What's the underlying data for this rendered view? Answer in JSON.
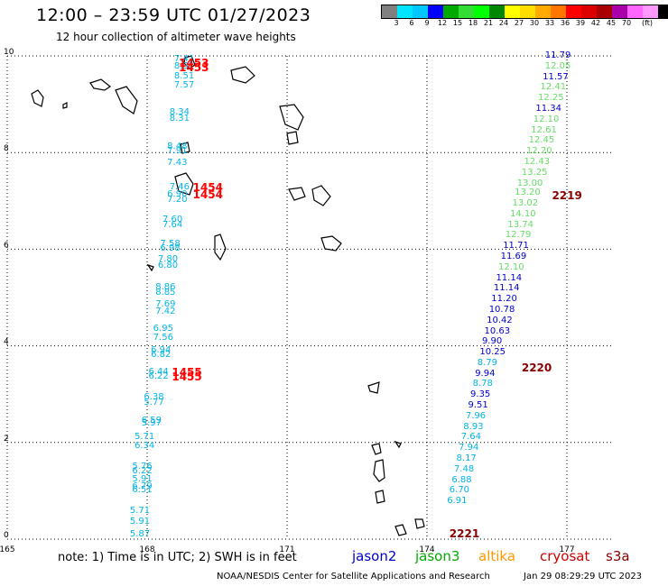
{
  "header": {
    "title": "12:00 – 23:59 UTC 01/27/2023",
    "subtitle": "12 hour collection of altimeter wave heights"
  },
  "colorbar": {
    "colors": [
      "#808080",
      "#00e5ff",
      "#00c8ff",
      "#0000ff",
      "#00aa00",
      "#33dd33",
      "#00ff00",
      "#008800",
      "#ffff00",
      "#ffdd00",
      "#ffaa00",
      "#ff7700",
      "#ff0000",
      "#dd0000",
      "#aa0000",
      "#aa00aa",
      "#ff66ff",
      "#ff99ff",
      "#000000"
    ],
    "labels": [
      "3",
      "6",
      "9",
      "12",
      "15",
      "18",
      "21",
      "24",
      "27",
      "30",
      "33",
      "36",
      "39",
      "42",
      "45",
      "70"
    ],
    "unit": "(ft)"
  },
  "axes": {
    "x_ticks": [
      "165",
      "168",
      "171",
      "174",
      "177"
    ],
    "y_ticks": [
      "0",
      "2",
      "4",
      "6",
      "8",
      "10"
    ]
  },
  "satellites": [
    {
      "name": "jason2",
      "color": "#0000cc"
    },
    {
      "name": "jason3",
      "color": "#00aa00"
    },
    {
      "name": "altika",
      "color": "#ff9900"
    },
    {
      "name": "cryosat",
      "color": "#cc0000"
    },
    {
      "name": "s3a",
      "color": "#880000"
    }
  ],
  "note": "note: 1) Time is in UTC; 2) SWH is in feet",
  "credit": "NOAA/NESDIS Center for Satellite Applications and Research",
  "generated": "Jan 29 08:29:29 UTC 2023",
  "pass_times": [
    {
      "text": "1453",
      "lon": 168.95,
      "lat": 9.85,
      "color": "#ff0000"
    },
    {
      "text": "1453",
      "lon": 168.95,
      "lat": 9.75,
      "color": "#ff0000"
    },
    {
      "text": "1454",
      "lon": 169.25,
      "lat": 7.28,
      "color": "#ff0000"
    },
    {
      "text": "1454",
      "lon": 169.25,
      "lat": 7.12,
      "color": "#ff0000"
    },
    {
      "text": "1455",
      "lon": 168.8,
      "lat": 3.45,
      "color": "#ff0000"
    },
    {
      "text": "1455",
      "lon": 168.8,
      "lat": 3.36,
      "color": "#ff0000"
    },
    {
      "text": "2219",
      "lon": 176.95,
      "lat": 7.1,
      "color": "#880000"
    },
    {
      "text": "2220",
      "lon": 176.3,
      "lat": 3.55,
      "color": "#880000"
    },
    {
      "text": "2221",
      "lon": 174.75,
      "lat": 0.12,
      "color": "#880000"
    }
  ],
  "wave_heights": [
    {
      "v": "7.41",
      "lon": 168.85,
      "lat": 9.92,
      "c": "#00b4e6"
    },
    {
      "v": "8.31",
      "lon": 168.85,
      "lat": 9.78,
      "c": "#00b4e6"
    },
    {
      "v": "8.51",
      "lon": 168.85,
      "lat": 9.57,
      "c": "#00b4e6"
    },
    {
      "v": "7.57",
      "lon": 168.85,
      "lat": 9.38,
      "c": "#00b4e6"
    },
    {
      "v": "8.34",
      "lon": 168.75,
      "lat": 8.82,
      "c": "#00b4e6"
    },
    {
      "v": "8.31",
      "lon": 168.75,
      "lat": 8.7,
      "c": "#00b4e6"
    },
    {
      "v": "8.48",
      "lon": 168.7,
      "lat": 8.12,
      "c": "#00b4e6"
    },
    {
      "v": "7.91",
      "lon": 168.7,
      "lat": 8.02,
      "c": "#00b4e6"
    },
    {
      "v": "7.43",
      "lon": 168.7,
      "lat": 7.78,
      "c": "#00b4e6"
    },
    {
      "v": "7.46",
      "lon": 168.75,
      "lat": 7.28,
      "c": "#00b4e6"
    },
    {
      "v": "6.90",
      "lon": 168.7,
      "lat": 7.12,
      "c": "#00b4e6"
    },
    {
      "v": "7.20",
      "lon": 168.7,
      "lat": 7.02,
      "c": "#00b4e6"
    },
    {
      "v": "7.60",
      "lon": 168.6,
      "lat": 6.6,
      "c": "#00b4e6"
    },
    {
      "v": "7.64",
      "lon": 168.6,
      "lat": 6.5,
      "c": "#00b4e6"
    },
    {
      "v": "7.58",
      "lon": 168.55,
      "lat": 6.1,
      "c": "#00b4e6"
    },
    {
      "v": "6.98",
      "lon": 168.55,
      "lat": 6.0,
      "c": "#00b4e6"
    },
    {
      "v": "7.80",
      "lon": 168.5,
      "lat": 5.78,
      "c": "#00b4e6"
    },
    {
      "v": "6.80",
      "lon": 168.5,
      "lat": 5.66,
      "c": "#00b4e6"
    },
    {
      "v": "8.86",
      "lon": 168.45,
      "lat": 5.2,
      "c": "#00b4e6"
    },
    {
      "v": "8.85",
      "lon": 168.45,
      "lat": 5.1,
      "c": "#00b4e6"
    },
    {
      "v": "7.69",
      "lon": 168.45,
      "lat": 4.86,
      "c": "#00b4e6"
    },
    {
      "v": "7.42",
      "lon": 168.45,
      "lat": 4.7,
      "c": "#00b4e6"
    },
    {
      "v": "6.95",
      "lon": 168.4,
      "lat": 4.34,
      "c": "#00b4e6"
    },
    {
      "v": "7.56",
      "lon": 168.4,
      "lat": 4.16,
      "c": "#00b4e6"
    },
    {
      "v": "6.94",
      "lon": 168.35,
      "lat": 3.9,
      "c": "#00b4e6"
    },
    {
      "v": "6.82",
      "lon": 168.35,
      "lat": 3.8,
      "c": "#00b4e6"
    },
    {
      "v": "6.44",
      "lon": 168.3,
      "lat": 3.45,
      "c": "#00b4e6"
    },
    {
      "v": "6.22",
      "lon": 168.3,
      "lat": 3.36,
      "c": "#00b4e6"
    },
    {
      "v": "6.38",
      "lon": 168.2,
      "lat": 2.92,
      "c": "#00b4e6"
    },
    {
      "v": "5.77",
      "lon": 168.2,
      "lat": 2.82,
      "c": "#00b4e6"
    },
    {
      "v": "6.59",
      "lon": 168.15,
      "lat": 2.45,
      "c": "#00b4e6"
    },
    {
      "v": "5.97",
      "lon": 168.15,
      "lat": 2.38,
      "c": "#00b4e6"
    },
    {
      "v": "5.71",
      "lon": 168.0,
      "lat": 2.1,
      "c": "#00b4e6"
    },
    {
      "v": "6.34",
      "lon": 168.0,
      "lat": 1.92,
      "c": "#00b4e6"
    },
    {
      "v": "5.76",
      "lon": 167.95,
      "lat": 1.5,
      "c": "#00b4e6"
    },
    {
      "v": "6.22",
      "lon": 167.95,
      "lat": 1.4,
      "c": "#00b4e6"
    },
    {
      "v": "5.91",
      "lon": 167.95,
      "lat": 1.24,
      "c": "#00b4e6"
    },
    {
      "v": "6.79",
      "lon": 167.95,
      "lat": 1.08,
      "c": "#00b4e6"
    },
    {
      "v": "6.51",
      "lon": 167.95,
      "lat": 1.0,
      "c": "#00b4e6"
    },
    {
      "v": "5.71",
      "lon": 167.9,
      "lat": 0.58,
      "c": "#00b4e6"
    },
    {
      "v": "5.91",
      "lon": 167.9,
      "lat": 0.36,
      "c": "#00b4e6"
    },
    {
      "v": "5.87",
      "lon": 167.9,
      "lat": 0.1,
      "c": "#00b4e6"
    },
    {
      "v": "11.79",
      "lon": 176.8,
      "lat": 10.0,
      "c": "#0000cc"
    },
    {
      "v": "12.05",
      "lon": 176.8,
      "lat": 9.78,
      "c": "#66dd66"
    },
    {
      "v": "11.57",
      "lon": 176.75,
      "lat": 9.56,
      "c": "#0000cc"
    },
    {
      "v": "12.41",
      "lon": 176.7,
      "lat": 9.34,
      "c": "#66dd66"
    },
    {
      "v": "12.25",
      "lon": 176.65,
      "lat": 9.12,
      "c": "#66dd66"
    },
    {
      "v": "11.34",
      "lon": 176.6,
      "lat": 8.9,
      "c": "#0000cc"
    },
    {
      "v": "12.10",
      "lon": 176.55,
      "lat": 8.68,
      "c": "#66dd66"
    },
    {
      "v": "12.61",
      "lon": 176.5,
      "lat": 8.46,
      "c": "#66dd66"
    },
    {
      "v": "12.45",
      "lon": 176.45,
      "lat": 8.24,
      "c": "#66dd66"
    },
    {
      "v": "12.20",
      "lon": 176.4,
      "lat": 8.02,
      "c": "#66dd66"
    },
    {
      "v": "12.43",
      "lon": 176.35,
      "lat": 7.8,
      "c": "#66dd66"
    },
    {
      "v": "13.25",
      "lon": 176.3,
      "lat": 7.58,
      "c": "#66dd66"
    },
    {
      "v": "13.00",
      "lon": 176.2,
      "lat": 7.36,
      "c": "#66dd66"
    },
    {
      "v": "13.20",
      "lon": 176.15,
      "lat": 7.16,
      "c": "#66dd66"
    },
    {
      "v": "13.02",
      "lon": 176.1,
      "lat": 6.94,
      "c": "#66dd66"
    },
    {
      "v": "14.10",
      "lon": 176.05,
      "lat": 6.72,
      "c": "#66dd66"
    },
    {
      "v": "13.74",
      "lon": 176.0,
      "lat": 6.5,
      "c": "#66dd66"
    },
    {
      "v": "12.79",
      "lon": 175.95,
      "lat": 6.28,
      "c": "#66dd66"
    },
    {
      "v": "11.71",
      "lon": 175.9,
      "lat": 6.06,
      "c": "#0000cc"
    },
    {
      "v": "11.69",
      "lon": 175.85,
      "lat": 5.84,
      "c": "#0000cc"
    },
    {
      "v": "12.10",
      "lon": 175.8,
      "lat": 5.62,
      "c": "#66dd66"
    },
    {
      "v": "11.14",
      "lon": 175.75,
      "lat": 5.4,
      "c": "#0000cc"
    },
    {
      "v": "11.14",
      "lon": 175.7,
      "lat": 5.18,
      "c": "#0000cc"
    },
    {
      "v": "11.20",
      "lon": 175.65,
      "lat": 4.96,
      "c": "#0000cc"
    },
    {
      "v": "10.78",
      "lon": 175.6,
      "lat": 4.74,
      "c": "#0000cc"
    },
    {
      "v": "10.42",
      "lon": 175.55,
      "lat": 4.52,
      "c": "#0000cc"
    },
    {
      "v": "10.63",
      "lon": 175.5,
      "lat": 4.3,
      "c": "#0000cc"
    },
    {
      "v": "9.90",
      "lon": 175.45,
      "lat": 4.08,
      "c": "#0000cc"
    },
    {
      "v": "10.25",
      "lon": 175.4,
      "lat": 3.86,
      "c": "#0000cc"
    },
    {
      "v": "8.79",
      "lon": 175.35,
      "lat": 3.64,
      "c": "#00b4e6"
    },
    {
      "v": "9.94",
      "lon": 175.3,
      "lat": 3.42,
      "c": "#0000cc"
    },
    {
      "v": "8.78",
      "lon": 175.25,
      "lat": 3.2,
      "c": "#00b4e6"
    },
    {
      "v": "9.35",
      "lon": 175.2,
      "lat": 2.98,
      "c": "#0000cc"
    },
    {
      "v": "9.51",
      "lon": 175.15,
      "lat": 2.76,
      "c": "#0000cc"
    },
    {
      "v": "7.96",
      "lon": 175.1,
      "lat": 2.54,
      "c": "#00b4e6"
    },
    {
      "v": "8.93",
      "lon": 175.05,
      "lat": 2.32,
      "c": "#00b4e6"
    },
    {
      "v": "7.64",
      "lon": 175.0,
      "lat": 2.1,
      "c": "#00b4e6"
    },
    {
      "v": "7.94",
      "lon": 174.95,
      "lat": 1.88,
      "c": "#00b4e6"
    },
    {
      "v": "8.17",
      "lon": 174.9,
      "lat": 1.66,
      "c": "#00b4e6"
    },
    {
      "v": "7.48",
      "lon": 174.85,
      "lat": 1.44,
      "c": "#00b4e6"
    },
    {
      "v": "6.88",
      "lon": 174.8,
      "lat": 1.22,
      "c": "#00b4e6"
    },
    {
      "v": "6.70",
      "lon": 174.75,
      "lat": 1.0,
      "c": "#00b4e6"
    },
    {
      "v": "6.91",
      "lon": 174.7,
      "lat": 0.78,
      "c": "#00b4e6"
    }
  ]
}
